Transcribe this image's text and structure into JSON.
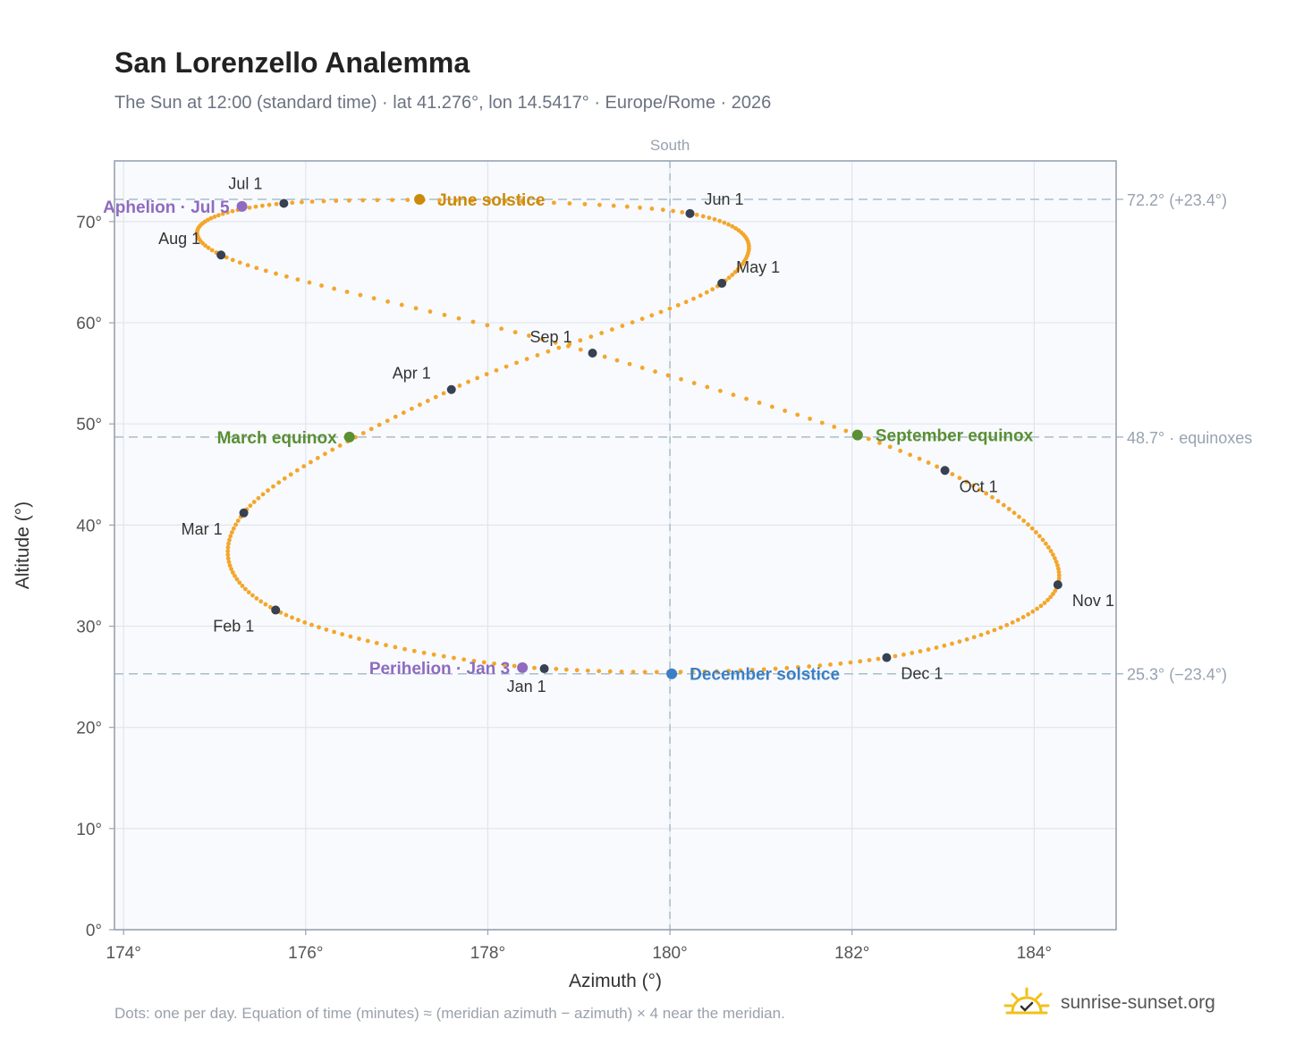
{
  "page": {
    "title": "San Lorenzello Analemma",
    "subtitle": "The Sun at 12:00 (standard time) · lat 41.276°, lon 14.5417° · Europe/Rome · 2026",
    "footnote": "Dots: one per day. Equation of time (minutes) ≈ (meridian azimuth − azimuth) × 4 near the meridian.",
    "brand": "sunrise-sunset.org"
  },
  "chart_data": {
    "type": "scatter",
    "title": "San Lorenzello Analemma",
    "subtitle": "The Sun at 12:00 (standard time) · lat 41.276°, lon 14.5417° · Europe/Rome · 2026",
    "xlabel": "Azimuth (°)",
    "ylabel": "Altitude (°)",
    "xlim": [
      173.9,
      184.9
    ],
    "ylim": [
      0,
      76
    ],
    "xticks": [
      174,
      176,
      178,
      180,
      182,
      184
    ],
    "xtick_labels": [
      "174°",
      "176°",
      "178°",
      "180°",
      "182°",
      "184°"
    ],
    "yticks": [
      0,
      10,
      20,
      30,
      40,
      50,
      60,
      70
    ],
    "ytick_labels": [
      "0°",
      "10°",
      "20°",
      "30°",
      "40°",
      "50°",
      "60°",
      "70°"
    ],
    "grid": true,
    "meridian": {
      "azimuth": 180,
      "label": "South"
    },
    "reference_lines": [
      {
        "altitude": 72.2,
        "label": "72.2° (+23.4°)"
      },
      {
        "altitude": 48.7,
        "label": "48.7° · equinoxes"
      },
      {
        "altitude": 25.3,
        "label": "25.3° (−23.4°)"
      }
    ],
    "curve_color": "#f4a62a",
    "month_markers": [
      {
        "label": "Jan 1",
        "azimuth": 178.62,
        "altitude": 25.8
      },
      {
        "label": "Feb 1",
        "azimuth": 175.67,
        "altitude": 31.6
      },
      {
        "label": "Mar 1",
        "azimuth": 175.32,
        "altitude": 41.2
      },
      {
        "label": "Apr 1",
        "azimuth": 177.6,
        "altitude": 53.4
      },
      {
        "label": "May 1",
        "azimuth": 180.57,
        "altitude": 63.9
      },
      {
        "label": "Jun 1",
        "azimuth": 180.22,
        "altitude": 70.8
      },
      {
        "label": "Jul 1",
        "azimuth": 175.76,
        "altitude": 71.8
      },
      {
        "label": "Aug 1",
        "azimuth": 175.07,
        "altitude": 66.7
      },
      {
        "label": "Sep 1",
        "azimuth": 179.15,
        "altitude": 57.0
      },
      {
        "label": "Oct 1",
        "azimuth": 183.02,
        "altitude": 45.4
      },
      {
        "label": "Nov 1",
        "azimuth": 184.26,
        "altitude": 34.1
      },
      {
        "label": "Dec 1",
        "azimuth": 182.38,
        "altitude": 26.9
      }
    ],
    "events": [
      {
        "label": "June solstice",
        "azimuth": 177.25,
        "altitude": 72.2,
        "color": "#cc8a0a"
      },
      {
        "label": "December solstice",
        "azimuth": 180.02,
        "altitude": 25.3,
        "color": "#3b7fc4"
      },
      {
        "label": "March equinox",
        "azimuth": 176.48,
        "altitude": 48.7,
        "color": "#5a8f32"
      },
      {
        "label": "September equinox",
        "azimuth": 182.06,
        "altitude": 48.9,
        "color": "#5a8f32"
      },
      {
        "label": "Aphelion · Jul 5",
        "azimuth": 175.3,
        "altitude": 71.5,
        "color": "#8e6bbf"
      },
      {
        "label": "Perihelion · Jan 3",
        "azimuth": 178.38,
        "altitude": 25.9,
        "color": "#8e6bbf"
      }
    ]
  }
}
